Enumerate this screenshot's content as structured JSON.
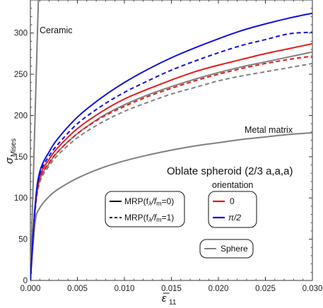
{
  "chart_data": {
    "type": "line",
    "xlabel": "ε̅",
    "xlabel_sub": "11",
    "ylabel": "σ",
    "ylabel_sub": "Mises",
    "xlim": [
      0,
      0.03
    ],
    "ylim": [
      0,
      340
    ],
    "xticks": [
      "0.000",
      "0.005",
      "0.010",
      "0.015",
      "0.020",
      "0.025",
      "0.030"
    ],
    "yticks": [
      "0",
      "50",
      "100",
      "150",
      "200",
      "250",
      "300"
    ],
    "grid": false,
    "x": [
      0,
      0.0005,
      0.001,
      0.002,
      0.003,
      0.005,
      0.0075,
      0.01,
      0.0125,
      0.015,
      0.0175,
      0.02,
      0.0225,
      0.025,
      0.0275,
      0.03
    ],
    "series": [
      {
        "name": "Ceramic",
        "color": "#808080",
        "dash": "solid",
        "x": [
          0,
          0.00085
        ],
        "values": [
          0,
          340
        ]
      },
      {
        "name": "Metal matrix",
        "color": "#808080",
        "dash": "solid",
        "values": [
          0,
          70,
          88,
          102,
          111,
          124,
          136,
          145,
          152,
          158,
          163,
          167,
          171,
          174,
          177,
          179
        ]
      },
      {
        "name": "Sphere",
        "color": "#808080",
        "dash": "solid",
        "values": [
          0,
          85,
          122,
          142,
          157,
          178,
          198,
          213,
          225,
          235,
          244,
          252,
          259,
          265,
          271,
          277
        ]
      },
      {
        "name": "Sphere",
        "color": "#808080",
        "dash": "dashed",
        "values": [
          0,
          83,
          119,
          139,
          153,
          173,
          191,
          205,
          216,
          226,
          234,
          242,
          248,
          253,
          258,
          263
        ]
      },
      {
        "name": "0",
        "color": "#e41a1c",
        "dash": "solid",
        "values": [
          0,
          88,
          126,
          147,
          162,
          184,
          204,
          220,
          232,
          243,
          253,
          261,
          268,
          275,
          281,
          287
        ]
      },
      {
        "name": "0",
        "color": "#e41a1c",
        "dash": "dashed",
        "values": [
          0,
          86,
          123,
          143,
          157,
          178,
          197,
          211,
          223,
          233,
          242,
          250,
          257,
          263,
          268,
          272
        ]
      },
      {
        "name": "π/2",
        "color": "#1010e0",
        "dash": "solid",
        "values": [
          0,
          90,
          132,
          156,
          173,
          198,
          221,
          240,
          256,
          270,
          282,
          293,
          303,
          311,
          318,
          324
        ]
      },
      {
        "name": "π/2",
        "color": "#1010e0",
        "dash": "dashed",
        "values": [
          0,
          89,
          129,
          151,
          166,
          190,
          211,
          228,
          242,
          255,
          266,
          276,
          285,
          292,
          299,
          301
        ]
      }
    ],
    "annotations": {
      "ceramic": "Ceramic",
      "metal": "Metal matrix",
      "shape": "Oblate spheroid (2/3 a,a,a)",
      "orientation": "orientation"
    },
    "legend_style": {
      "solid_label": "MRP(f",
      "solid_sub": "λ",
      "solid_mid": "/f",
      "solid_sub2": "m",
      "solid_end": "=0)",
      "dashed_end": "=1)"
    },
    "legend_orientation": [
      {
        "label": "0",
        "color": "#e41a1c"
      },
      {
        "label": "π/2",
        "color": "#1010e0"
      }
    ],
    "legend_sphere": {
      "label": "Sphere",
      "color": "#808080"
    }
  }
}
